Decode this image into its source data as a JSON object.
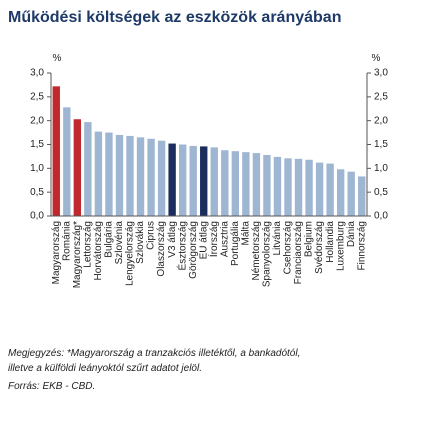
{
  "chart_data": {
    "type": "bar",
    "title": "Működési költségek az eszközök arányában",
    "y_unit": "%",
    "categories": [
      "Magyarország",
      "Románia",
      "Magyarország*",
      "Lettország",
      "Horvátország",
      "Bulgária",
      "Szlovénia",
      "Lengyelország",
      "Szlovákia",
      "Ciprus",
      "Olaszország",
      "V3 átlag",
      "Észtország",
      "Görögország",
      "EU átlag",
      "Írország",
      "Ausztria",
      "Portugália",
      "Málta",
      "Németország",
      "Spanyolország",
      "Litvánia",
      "Csehország",
      "Franciaország",
      "Belgium",
      "Svédország",
      "Hollandia",
      "Luxemburg",
      "Dánia",
      "Finnország"
    ],
    "values": [
      2.72,
      2.28,
      2.03,
      1.97,
      1.77,
      1.75,
      1.7,
      1.68,
      1.65,
      1.62,
      1.58,
      1.52,
      1.5,
      1.47,
      1.46,
      1.44,
      1.38,
      1.36,
      1.34,
      1.32,
      1.28,
      1.24,
      1.21,
      1.2,
      1.18,
      1.12,
      1.1,
      0.98,
      0.93,
      0.83
    ],
    "colors": [
      "#c0282e",
      "#9fb6d2",
      "#c0282e",
      "#9fb6d2",
      "#9fb6d2",
      "#9fb6d2",
      "#9fb6d2",
      "#9fb6d2",
      "#9fb6d2",
      "#9fb6d2",
      "#9fb6d2",
      "#1b2d5c",
      "#9fb6d2",
      "#9fb6d2",
      "#1b2d5c",
      "#9fb6d2",
      "#9fb6d2",
      "#9fb6d2",
      "#9fb6d2",
      "#9fb6d2",
      "#9fb6d2",
      "#9fb6d2",
      "#9fb6d2",
      "#9fb6d2",
      "#9fb6d2",
      "#9fb6d2",
      "#9fb6d2",
      "#9fb6d2",
      "#9fb6d2",
      "#9fb6d2"
    ],
    "ylim": [
      0,
      3
    ],
    "yticks": [
      {
        "value": 0,
        "label": "0,0"
      },
      {
        "value": 0.5,
        "label": "0,5"
      },
      {
        "value": 1,
        "label": "1,0"
      },
      {
        "value": 1.5,
        "label": "1,5"
      },
      {
        "value": 2,
        "label": "2,0"
      },
      {
        "value": 2.5,
        "label": "2,5"
      },
      {
        "value": 3,
        "label": "3,0"
      }
    ],
    "grid": false,
    "note_lines": [
      "Megjegyzés: *Magyarország a tranzakciós illetéktől, a bankadótól,",
      "illetve a külföldi leányoktól szűrt adatot jelöl."
    ],
    "source": "Forrás: EKB - CBD."
  }
}
